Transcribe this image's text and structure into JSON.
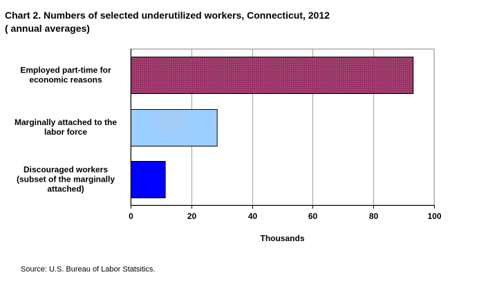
{
  "chart_data": {
    "type": "bar",
    "orientation": "horizontal",
    "title_line1": "Chart 2. Numbers of selected underutilized workers, Connecticut, 2012",
    "title_line2": "( annual averages)",
    "categories": [
      [
        "Employed part-time  for",
        "economic reasons"
      ],
      [
        "Marginally attached  to the",
        "labor force"
      ],
      [
        "Discouraged workers",
        "(subset of the marginally",
        "attached)"
      ]
    ],
    "values": [
      93,
      28.4,
      11.3
    ],
    "bar_colors": [
      "#993366",
      "#99ccff",
      "#0000ff"
    ],
    "xlabel": "Thousands",
    "xlim": [
      0,
      100
    ],
    "xticks": [
      "0",
      "20",
      "40",
      "60",
      "80",
      "100"
    ],
    "grid": true
  },
  "source": "Source: U.S. Bureau of Labor Statsitics."
}
